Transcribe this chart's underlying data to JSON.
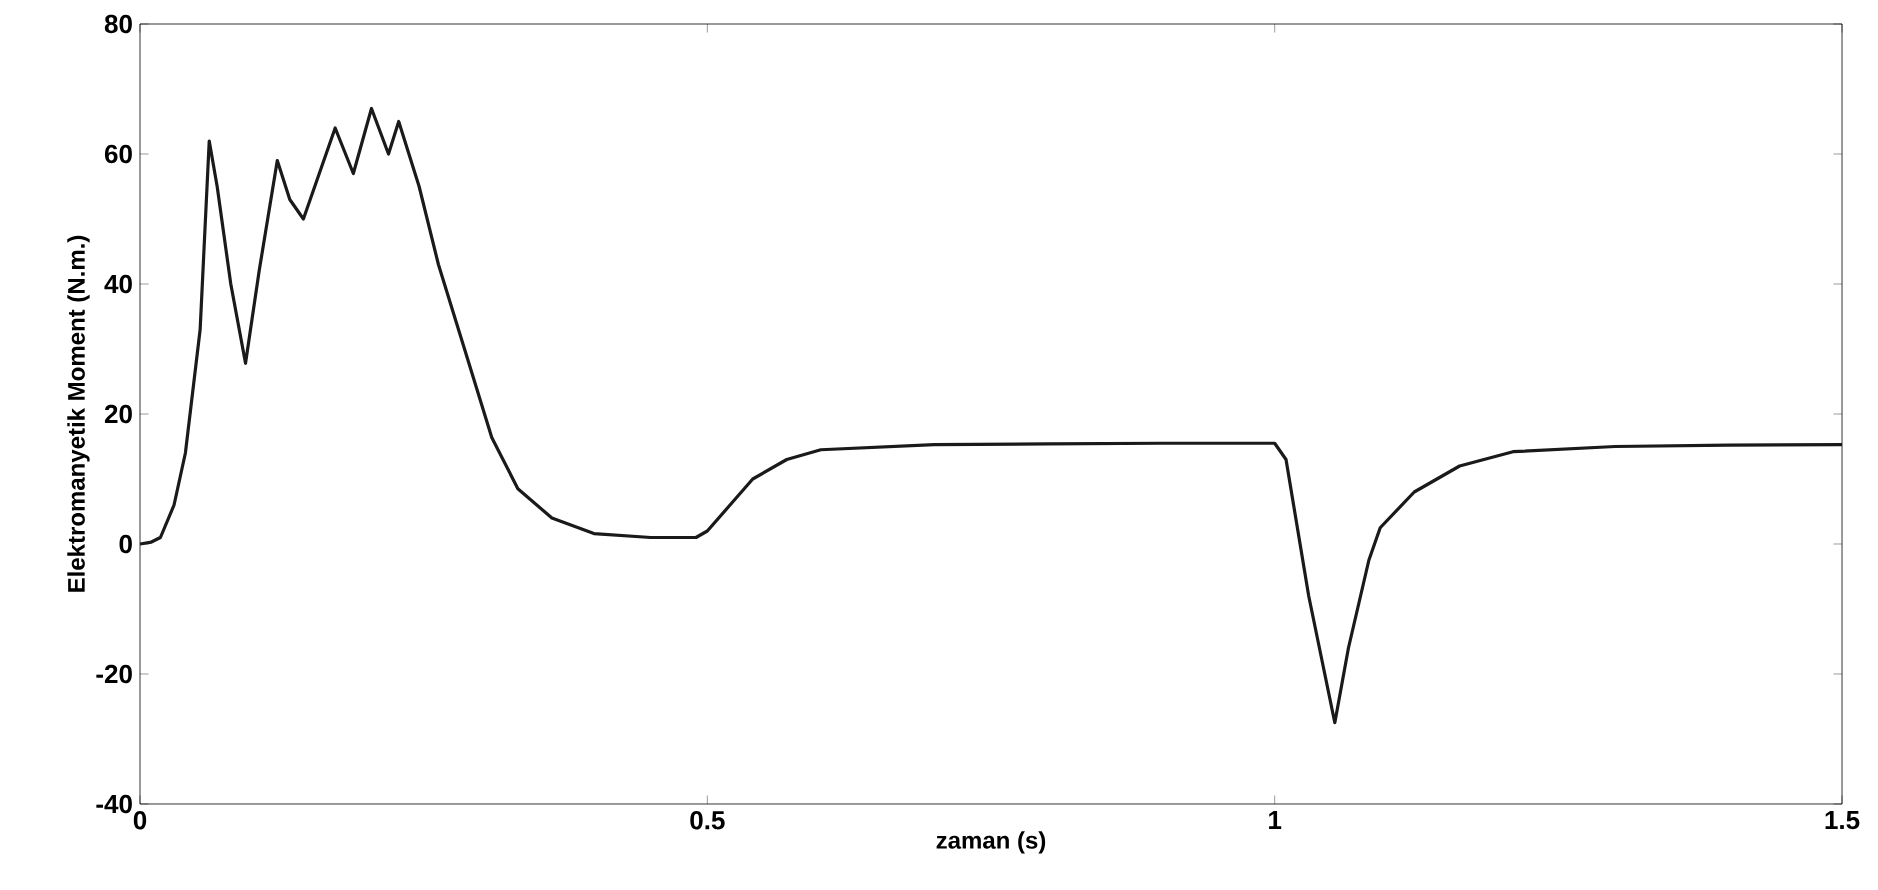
{
  "chart_data": {
    "type": "line",
    "xlabel": "zaman (s)",
    "ylabel": "Elektromanyetik Moment (N.m.)",
    "xlim": [
      0,
      1.5
    ],
    "ylim": [
      -40,
      80
    ],
    "xticks": [
      0,
      0.5,
      1,
      1.5
    ],
    "yticks": [
      -40,
      -20,
      0,
      20,
      40,
      60,
      80
    ],
    "grid": false,
    "series": [
      {
        "color": "#1a1a1a",
        "x": [
          0,
          0.01,
          0.018,
          0.03,
          0.04,
          0.053,
          0.061,
          0.068,
          0.08,
          0.093,
          0.105,
          0.121,
          0.132,
          0.144,
          0.158,
          0.172,
          0.188,
          0.204,
          0.219,
          0.228,
          0.246,
          0.263,
          0.286,
          0.31,
          0.333,
          0.363,
          0.4,
          0.45,
          0.49,
          0.5,
          0.52,
          0.54,
          0.57,
          0.6,
          0.7,
          0.8,
          0.9,
          1.0,
          1.01,
          1.03,
          1.053,
          1.065,
          1.083,
          1.093,
          1.123,
          1.163,
          1.21,
          1.3,
          1.4,
          1.5
        ],
        "values": [
          0,
          0.3,
          1,
          6,
          14,
          33,
          62,
          55,
          40,
          27.8,
          42,
          59,
          53,
          50,
          57,
          64,
          57,
          67,
          60,
          65,
          55,
          43,
          30,
          16.4,
          8.5,
          4,
          1.6,
          1,
          1,
          2,
          6,
          10,
          13,
          14.5,
          15.3,
          15.4,
          15.5,
          15.5,
          13,
          -8,
          -27.5,
          -16,
          -2.5,
          2.5,
          8,
          12,
          14.2,
          15,
          15.2,
          15.3
        ]
      }
    ]
  }
}
